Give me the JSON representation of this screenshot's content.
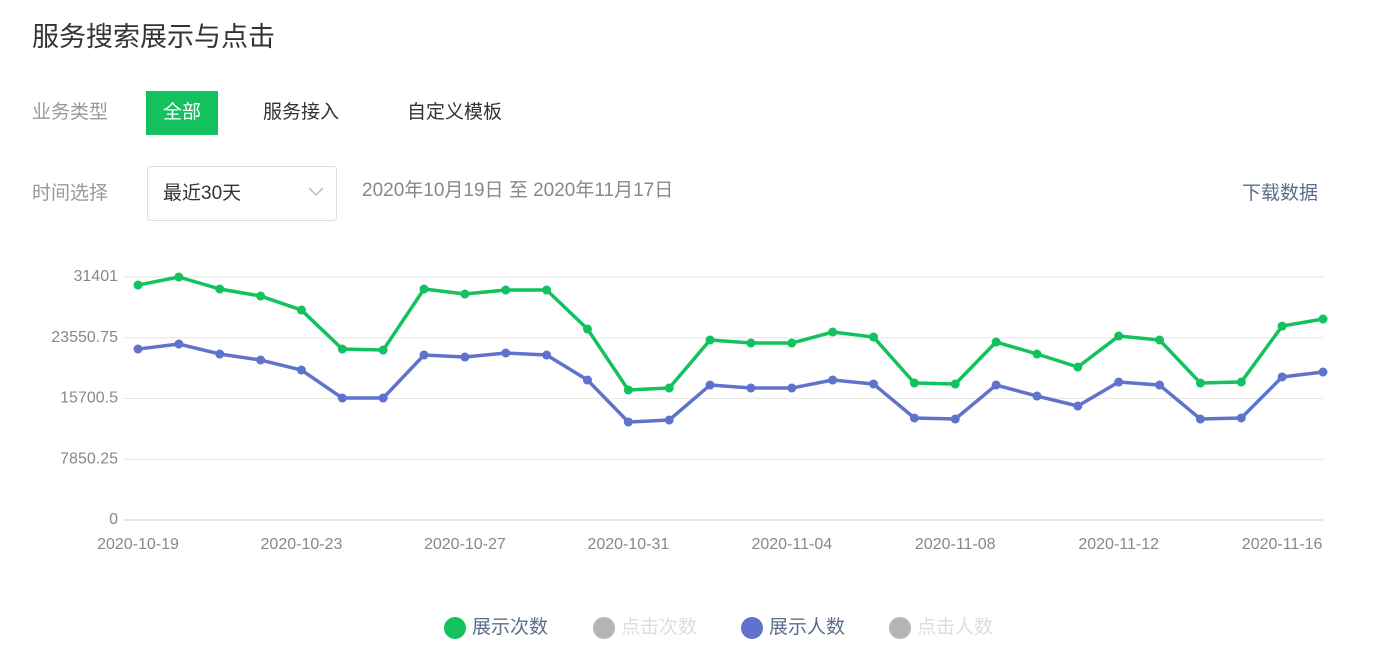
{
  "header": {
    "title": "服务搜索展示与点击"
  },
  "filters": {
    "business_label": "业务类型",
    "business_options": [
      "全部",
      "服务接入",
      "自定义模板"
    ],
    "time_label": "时间选择",
    "time_select": "最近30天",
    "date_range": "2020年10月19日 至 2020年11月17日",
    "download": "下载数据"
  },
  "chart_data": {
    "type": "line",
    "categories": [
      "2020-10-19",
      null,
      null,
      null,
      "2020-10-23",
      null,
      null,
      null,
      "2020-10-27",
      null,
      null,
      null,
      "2020-10-31",
      null,
      null,
      null,
      "2020-11-04",
      null,
      null,
      null,
      "2020-11-08",
      null,
      null,
      null,
      "2020-11-12",
      null,
      null,
      null,
      "2020-11-16",
      null
    ],
    "ylim": [
      0,
      31401
    ],
    "yticks": [
      0,
      7850.25,
      15700.5,
      23550.75,
      31401
    ],
    "grid": true,
    "legend": "bottom",
    "series": [
      {
        "name": "展示次数",
        "color": "#13c15e",
        "values": [
          30360,
          31400,
          29850,
          28940,
          27130,
          22090,
          21960,
          29850,
          29200,
          29720,
          29720,
          24680,
          16800,
          17050,
          23260,
          22870,
          22870,
          24290,
          23640,
          17700,
          17570,
          23000,
          21450,
          19770,
          23770,
          23260,
          17700,
          17830,
          25060,
          25970
        ]
      },
      {
        "name": "点击次数",
        "color": "#b5b5b5",
        "hidden": true
      },
      {
        "name": "展示人数",
        "color": "#5f73cc",
        "values": [
          22090,
          22740,
          21450,
          20670,
          19380,
          15760,
          15760,
          21320,
          21060,
          21580,
          21320,
          18090,
          12660,
          12920,
          17440,
          17050,
          17050,
          18090,
          17570,
          13180,
          13050,
          17440,
          16020,
          14730,
          17830,
          17440,
          13050,
          13180,
          18480,
          19120
        ]
      },
      {
        "name": "点击人数",
        "color": "#b5b5b5",
        "hidden": true
      }
    ]
  }
}
